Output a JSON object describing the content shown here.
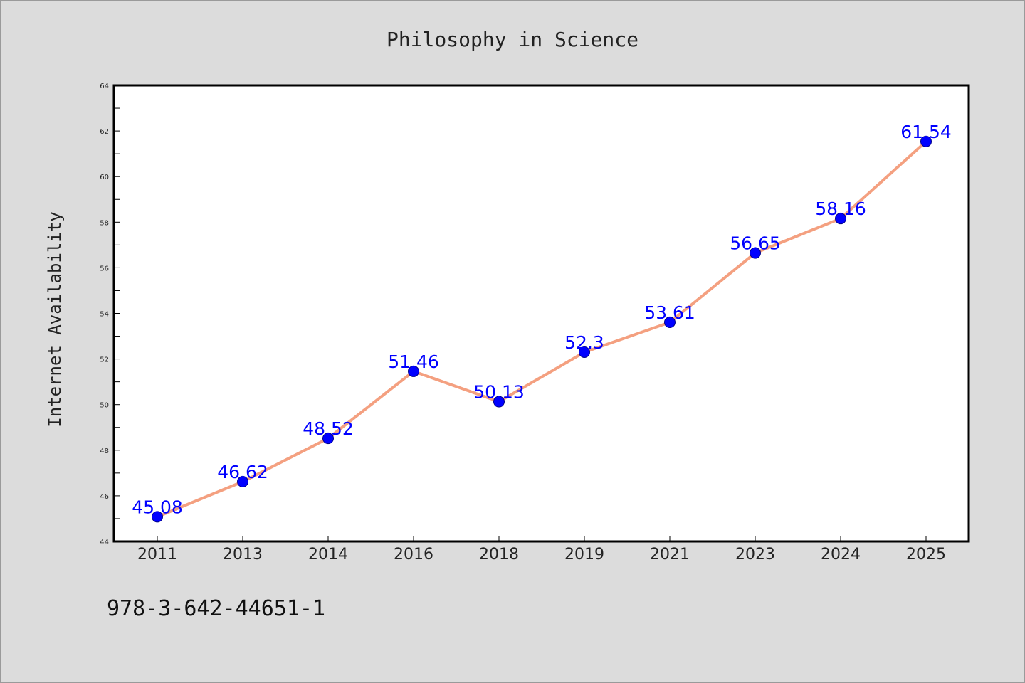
{
  "chart_data": {
    "type": "line",
    "title": "Philosophy in Science",
    "xlabel": "",
    "ylabel": "Internet Availability",
    "categories": [
      "2011",
      "2013",
      "2014",
      "2016",
      "2018",
      "2019",
      "2021",
      "2023",
      "2024",
      "2025"
    ],
    "series": [
      {
        "values": [
          45.08,
          46.62,
          48.52,
          51.46,
          50.13,
          52.3,
          53.61,
          56.65,
          58.16,
          61.54
        ],
        "line_color": "#f4a080",
        "marker_color": "#0000ff"
      }
    ],
    "data_labels": [
      "45.08",
      "46.62",
      "48.52",
      "51.46",
      "50.13",
      "52.3",
      "53.61",
      "56.65",
      "58.16",
      "61.54"
    ],
    "ylim": [
      44,
      64
    ],
    "yticks": [
      44,
      46,
      48,
      50,
      52,
      54,
      56,
      58,
      60,
      62,
      64
    ],
    "ytick_labels": [
      "44",
      "46",
      "48",
      "50",
      "52",
      "54",
      "56",
      "58",
      "60",
      "62",
      "64"
    ],
    "grid": false,
    "legend": "none",
    "plot_background": "#ffffff",
    "figure_background": "#dcdcdc"
  },
  "footer": {
    "code": "978-3-642-44651-1"
  }
}
